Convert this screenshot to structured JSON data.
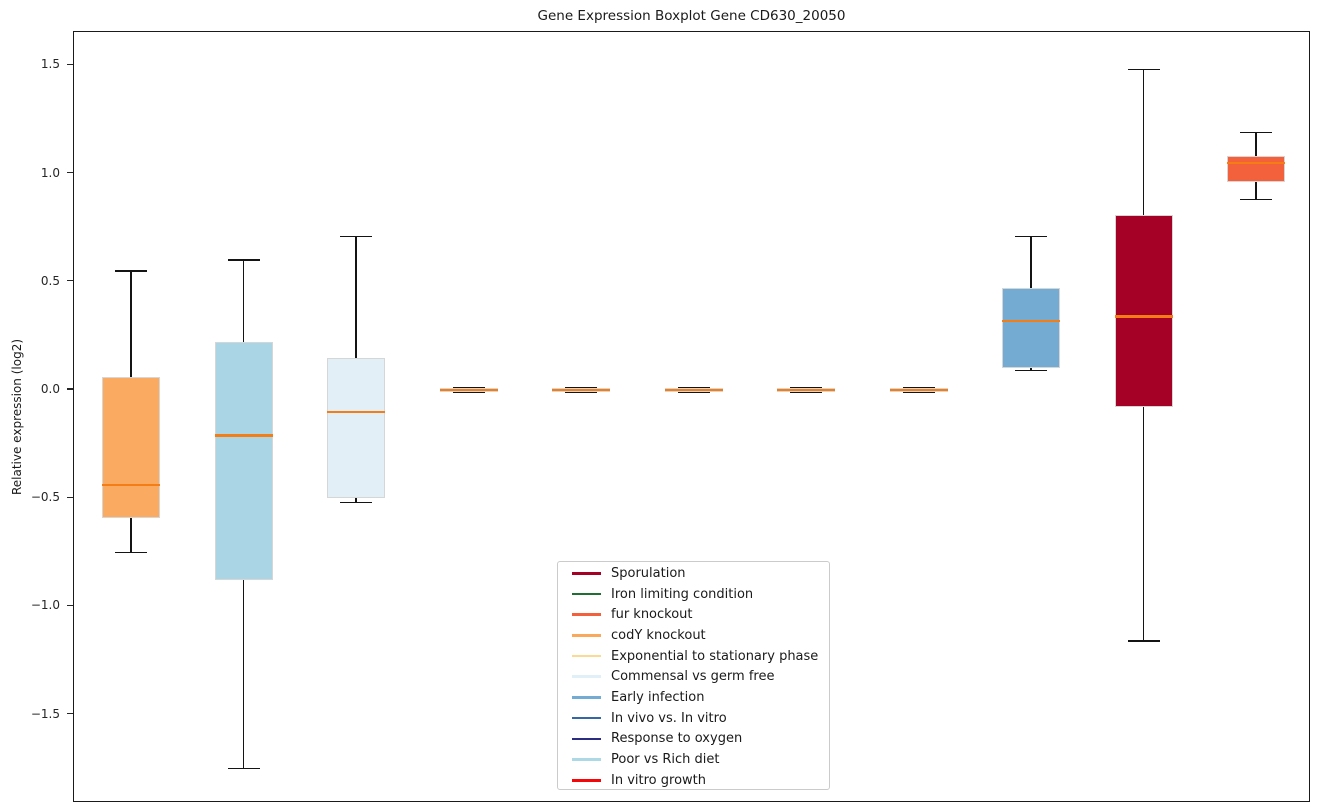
{
  "window": {
    "background_color": "#ffffff"
  },
  "chart_data": {
    "type": "boxplot",
    "title": "Gene Expression Boxplot Gene CD630_20050",
    "xlabel": "",
    "ylabel": "Relative expression (log2)",
    "ylim": [
      -1.9,
      1.65
    ],
    "yticks": [
      1.5,
      1.0,
      0.5,
      0.0,
      -0.5,
      -1.0,
      -1.5
    ],
    "ytick_labels": [
      "1.5",
      "1.0",
      "0.5",
      "0.0",
      "−0.5",
      "−1.0",
      "−1.5"
    ],
    "xtick_labels": [],
    "grid": false,
    "median_color": "#f57d15",
    "whisker_color": "#141414",
    "box_edge_color": "#d6d6d6",
    "boxes": [
      {
        "category": "codY knockout",
        "color": "#fbab61",
        "whisker_low": -0.75,
        "q1": -0.59,
        "median": -0.44,
        "q3": 0.06,
        "whisker_high": 0.55
      },
      {
        "category": "Poor vs Rich diet",
        "color": "#aad5e5",
        "whisker_low": -1.75,
        "q1": -0.88,
        "median": -0.21,
        "q3": 0.22,
        "whisker_high": 0.6
      },
      {
        "category": "Commensal vs germ free",
        "color": "#e2eff7",
        "whisker_low": -0.52,
        "q1": -0.5,
        "median": -0.1,
        "q3": 0.15,
        "whisker_high": 0.71
      },
      {
        "category": "Exponential to stationary phase",
        "color": "#fbdb94",
        "whisker_low": 0.0,
        "q1": 0.0,
        "median": 0.0,
        "q3": 0.0,
        "whisker_high": 0.0
      },
      {
        "category": "In vitro growth",
        "color": "#f60509",
        "whisker_low": 0.0,
        "q1": 0.0,
        "median": 0.0,
        "q3": 0.0,
        "whisker_high": 0.0
      },
      {
        "category": "Iron limiting condition",
        "color": "#1f6e34",
        "whisker_low": 0.0,
        "q1": 0.0,
        "median": 0.0,
        "q3": 0.0,
        "whisker_high": 0.0
      },
      {
        "category": "In vivo vs. In vitro",
        "color": "#3566a6",
        "whisker_low": 0.0,
        "q1": 0.0,
        "median": 0.0,
        "q3": 0.0,
        "whisker_high": 0.0
      },
      {
        "category": "Response to oxygen",
        "color": "#2b2d83",
        "whisker_low": 0.0,
        "q1": 0.0,
        "median": 0.0,
        "q3": 0.0,
        "whisker_high": 0.0
      },
      {
        "category": "Early infection",
        "color": "#74abd3",
        "whisker_low": 0.09,
        "q1": 0.1,
        "median": 0.32,
        "q3": 0.47,
        "whisker_high": 0.71
      },
      {
        "category": "Sporulation",
        "color": "#a50026",
        "whisker_low": -1.16,
        "q1": -0.08,
        "median": 0.34,
        "q3": 0.81,
        "whisker_high": 1.48
      },
      {
        "category": "fur knockout",
        "color": "#f3613c",
        "whisker_low": 0.88,
        "q1": 0.96,
        "median": 1.05,
        "q3": 1.08,
        "whisker_high": 1.19
      }
    ],
    "legend": {
      "position": "lower center",
      "entries": [
        {
          "label": "Sporulation",
          "color": "#a50026"
        },
        {
          "label": "Iron limiting condition",
          "color": "#1f6e34"
        },
        {
          "label": "fur knockout",
          "color": "#f3613c"
        },
        {
          "label": "codY knockout",
          "color": "#f9a85c"
        },
        {
          "label": "Exponential to stationary phase",
          "color": "#fbdb94"
        },
        {
          "label": "Commensal vs germ free",
          "color": "#e0eff8"
        },
        {
          "label": "Early infection",
          "color": "#74abd3"
        },
        {
          "label": "In vivo vs. In vitro",
          "color": "#3566a6"
        },
        {
          "label": "Response to oxygen",
          "color": "#2b2d83"
        },
        {
          "label": "Poor vs Rich diet",
          "color": "#add8e6"
        },
        {
          "label": "In vitro growth",
          "color": "#f60509"
        }
      ]
    }
  }
}
